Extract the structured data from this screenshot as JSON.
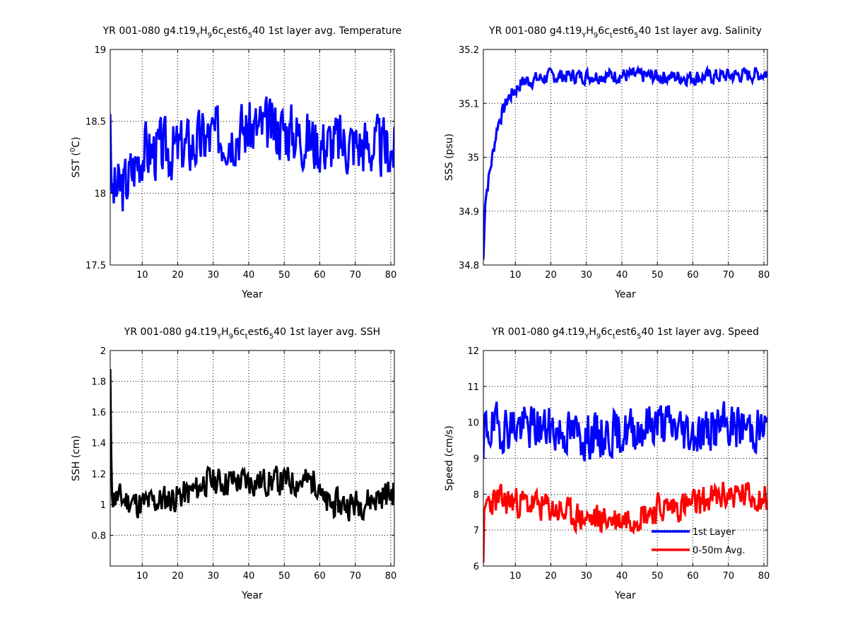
{
  "figure": {
    "background": "#ffffff"
  },
  "chart_data": [
    {
      "type": "line",
      "title": {
        "pre": "YR 001-080 g4.t19",
        "sub1": "Y",
        "mid1": "H",
        "sub2": "9",
        "mid2": "6c",
        "sub3": "t",
        "mid3": "est6",
        "sub4": "5",
        "post": "40 1st layer avg. Temperature"
      },
      "xlabel": "Year",
      "ylabel": {
        "pre": "SST (",
        "sup": "0",
        "post": "C)"
      },
      "xlim": [
        1,
        81
      ],
      "ylim": [
        17.5,
        19
      ],
      "xticks": [
        10,
        20,
        30,
        40,
        50,
        60,
        70,
        80
      ],
      "yticks": [
        17.5,
        18,
        18.5,
        19
      ],
      "ytick_labels": [
        "17.5",
        "18",
        "18.5",
        "19"
      ],
      "grid": true,
      "series": [
        {
          "color": "#0000ff",
          "gen": {
            "start": 18.55,
            "approach": [
              {
                "x": 1,
                "y": 18.0
              },
              {
                "x": 5,
                "y": 18.05
              },
              {
                "x": 10,
                "y": 18.3
              },
              {
                "x": 20,
                "y": 18.3
              },
              {
                "x": 30,
                "y": 18.4
              },
              {
                "x": 40,
                "y": 18.45
              },
              {
                "x": 50,
                "y": 18.45
              },
              {
                "x": 60,
                "y": 18.35
              },
              {
                "x": 70,
                "y": 18.35
              },
              {
                "x": 81,
                "y": 18.3
              }
            ],
            "amp": 0.2,
            "period": 0.25,
            "seed": 3
          }
        }
      ]
    },
    {
      "type": "line",
      "title": {
        "pre": "YR 001-080 g4.t19",
        "sub1": "Y",
        "mid1": "H",
        "sub2": "9",
        "mid2": "6c",
        "sub3": "t",
        "mid3": "est6",
        "sub4": "5",
        "post": "40 1st layer avg. Salinity"
      },
      "xlabel": "Year",
      "ylabel": {
        "pre": "SSS (psu)",
        "sup": "",
        "post": ""
      },
      "xlim": [
        1,
        81
      ],
      "ylim": [
        34.8,
        35.2
      ],
      "xticks": [
        10,
        20,
        30,
        40,
        50,
        60,
        70,
        80
      ],
      "yticks": [
        34.8,
        34.9,
        35,
        35.1,
        35.2
      ],
      "ytick_labels": [
        "34.8",
        "34.9",
        "35",
        "35.1",
        "35.2"
      ],
      "grid": true,
      "series": [
        {
          "color": "#0000ff",
          "gen": {
            "start": 34.81,
            "approach": [
              {
                "x": 1,
                "y": 34.81
              },
              {
                "x": 1.5,
                "y": 34.92
              },
              {
                "x": 3,
                "y": 34.98
              },
              {
                "x": 5,
                "y": 35.06
              },
              {
                "x": 8,
                "y": 35.11
              },
              {
                "x": 12,
                "y": 35.14
              },
              {
                "x": 20,
                "y": 35.15
              },
              {
                "x": 40,
                "y": 35.152
              },
              {
                "x": 60,
                "y": 35.148
              },
              {
                "x": 81,
                "y": 35.155
              }
            ],
            "amp": 0.013,
            "period": 0.25,
            "seed": 7
          }
        }
      ]
    },
    {
      "type": "line",
      "title": {
        "pre": "YR 001-080 g4.t19",
        "sub1": "Y",
        "mid1": "H",
        "sub2": "9",
        "mid2": "6c",
        "sub3": "t",
        "mid3": "est6",
        "sub4": "5",
        "post": "40 1st layer avg. SSH"
      },
      "xlabel": "Year",
      "ylabel": {
        "pre": "SSH (cm)",
        "sup": "",
        "post": ""
      },
      "xlim": [
        1,
        81
      ],
      "ylim": [
        0.6,
        2
      ],
      "xticks": [
        10,
        20,
        30,
        40,
        50,
        60,
        70,
        80
      ],
      "yticks": [
        0.8,
        1,
        1.2,
        1.4,
        1.6,
        1.8,
        2
      ],
      "ytick_labels": [
        "0.8",
        "1",
        "1.2",
        "1.4",
        "1.6",
        "1.8",
        "2"
      ],
      "grid": true,
      "series": [
        {
          "color": "#000000",
          "gen": {
            "start": 1.88,
            "approach": [
              {
                "x": 1,
                "y": 1.6
              },
              {
                "x": 1.6,
                "y": 1.05
              },
              {
                "x": 10,
                "y": 1.0
              },
              {
                "x": 20,
                "y": 1.05
              },
              {
                "x": 26,
                "y": 1.1
              },
              {
                "x": 27,
                "y": 1.15
              },
              {
                "x": 40,
                "y": 1.15
              },
              {
                "x": 60,
                "y": 1.15
              },
              {
                "x": 61,
                "y": 1.0
              },
              {
                "x": 70,
                "y": 1.0
              },
              {
                "x": 81,
                "y": 1.08
              }
            ],
            "amp": 0.09,
            "period": 0.25,
            "seed": 11
          }
        }
      ]
    },
    {
      "type": "line",
      "title": {
        "pre": "YR 001-080 g4.t19",
        "sub1": "Y",
        "mid1": "H",
        "sub2": "9",
        "mid2": "6c",
        "sub3": "t",
        "mid3": "est6",
        "sub4": "5",
        "post": "40 1st layer avg. Speed"
      },
      "xlabel": "Year",
      "ylabel": {
        "pre": "Speed (cm/s)",
        "sup": "",
        "post": ""
      },
      "xlim": [
        1,
        81
      ],
      "ylim": [
        6,
        12
      ],
      "xticks": [
        10,
        20,
        30,
        40,
        50,
        60,
        70,
        80
      ],
      "yticks": [
        6,
        7,
        8,
        9,
        10,
        11,
        12
      ],
      "ytick_labels": [
        "6",
        "7",
        "8",
        "9",
        "10",
        "11",
        "12"
      ],
      "grid": true,
      "legend": {
        "position": "lower-right"
      },
      "series": [
        {
          "name": "1st Layer",
          "color": "#0000ff",
          "gen": {
            "start": 9.0,
            "approach": [
              {
                "x": 1,
                "y": 9.8
              },
              {
                "x": 10,
                "y": 9.9
              },
              {
                "x": 20,
                "y": 9.8
              },
              {
                "x": 30,
                "y": 9.6
              },
              {
                "x": 40,
                "y": 9.7
              },
              {
                "x": 50,
                "y": 10.0
              },
              {
                "x": 60,
                "y": 9.7
              },
              {
                "x": 70,
                "y": 9.9
              },
              {
                "x": 81,
                "y": 9.8
              }
            ],
            "amp": 0.6,
            "period": 0.25,
            "seed": 19
          }
        },
        {
          "name": "0-50m Avg.",
          "color": "#ff0000",
          "gen": {
            "start": 6.1,
            "approach": [
              {
                "x": 1,
                "y": 7.0
              },
              {
                "x": 2,
                "y": 7.8
              },
              {
                "x": 10,
                "y": 7.8
              },
              {
                "x": 20,
                "y": 7.6
              },
              {
                "x": 30,
                "y": 7.3
              },
              {
                "x": 40,
                "y": 7.3
              },
              {
                "x": 50,
                "y": 7.6
              },
              {
                "x": 60,
                "y": 7.7
              },
              {
                "x": 70,
                "y": 8.0
              },
              {
                "x": 81,
                "y": 7.9
              }
            ],
            "amp": 0.4,
            "period": 0.25,
            "seed": 23
          }
        }
      ]
    }
  ]
}
